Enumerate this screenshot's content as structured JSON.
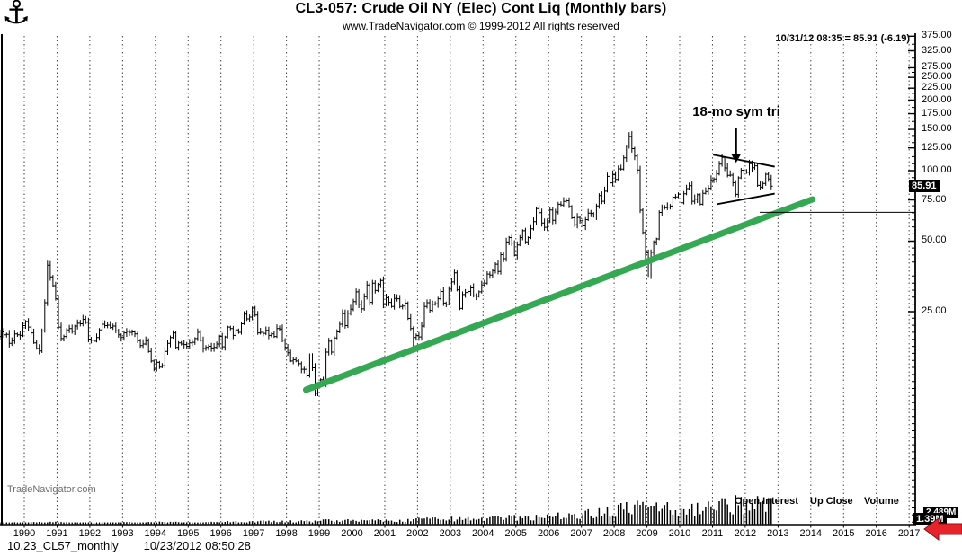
{
  "header": {
    "title": "CL3-057:  Crude Oil NY (Elec) Cont Liq  (Monthly bars)",
    "subtitle": "www.TradeNavigator.com © 1999-2012 All rights reserved",
    "quote": "10/31/12 08:35 = 85.91 (-6.19)"
  },
  "watermark": "TradeNavigator.com",
  "legend": {
    "open_interest": "Open Interest",
    "up_close": "Up Close",
    "volume": "Volume"
  },
  "footer": {
    "file": "10.23_CL57_monthly",
    "timestamp": "10/23/2012 08:50:28"
  },
  "badges": {
    "last_price": "85.91",
    "volume_front": "1.39M",
    "volume_back": "2.489M"
  },
  "annotation": {
    "label": "18-mo sym tri"
  },
  "chart_data": {
    "type": "bar",
    "subtype": "monthly-ohlc-bars",
    "title": "CL3-057: Crude Oil NY (Elec) Cont Liq (Monthly bars)",
    "last_quote": {
      "date": "10/31/12",
      "time": "08:35",
      "price": 85.91,
      "change": -6.19
    },
    "x_axis": {
      "start_year": 1989,
      "end_year": 2017,
      "tick_years": [
        1990,
        1991,
        1992,
        1993,
        1994,
        1995,
        1996,
        1997,
        1998,
        1999,
        2000,
        2001,
        2002,
        2003,
        2004,
        2005,
        2006,
        2007,
        2008,
        2009,
        2010,
        2011,
        2012,
        2013,
        2014,
        2015,
        2016,
        2017
      ]
    },
    "y_axis": {
      "scale": "log",
      "side": "right",
      "labels": [
        "375.00",
        "325.00",
        "275.00",
        "250.00",
        "225.00",
        "200.00",
        "175.00",
        "150.00",
        "125.00",
        "100.00",
        "75.00",
        "50.00",
        "25.00"
      ],
      "grid": "vertical-dashed-only"
    },
    "monthly_closes": {
      "1989": [
        17.0,
        17.9,
        19.6,
        20.5,
        19.9,
        20.0,
        18.3,
        18.8,
        20.1,
        19.9,
        19.8,
        21.8
      ],
      "1990": [
        22.7,
        21.5,
        20.3,
        18.4,
        17.4,
        17.0,
        20.7,
        27.3,
        39.5,
        35.2,
        32.3,
        28.4
      ],
      "1991": [
        21.5,
        19.2,
        19.6,
        20.9,
        21.2,
        20.6,
        21.7,
        22.3,
        22.2,
        23.2,
        22.5,
        19.1
      ],
      "1992": [
        18.9,
        18.7,
        19.4,
        20.9,
        22.1,
        21.8,
        21.9,
        21.4,
        21.7,
        20.7,
        19.9,
        19.4
      ],
      "1993": [
        20.3,
        20.6,
        20.4,
        20.5,
        20.1,
        18.8,
        17.9,
        18.2,
        18.8,
        16.9,
        15.4,
        14.2
      ],
      "1994": [
        15.2,
        14.5,
        14.7,
        16.9,
        18.3,
        19.4,
        20.3,
        17.6,
        18.4,
        18.2,
        18.1,
        17.8
      ],
      "1995": [
        18.4,
        18.5,
        19.2,
        20.4,
        18.9,
        17.4,
        17.6,
        17.8,
        17.5,
        17.6,
        18.2,
        19.6
      ],
      "1996": [
        17.7,
        19.5,
        21.5,
        21.2,
        19.8,
        20.9,
        20.4,
        22.2,
        24.4,
        23.3,
        23.7,
        25.9
      ],
      "1997": [
        24.2,
        20.3,
        20.4,
        20.2,
        20.8,
        19.8,
        20.1,
        19.6,
        21.2,
        21.1,
        18.9,
        17.6
      ],
      "1998": [
        16.7,
        15.4,
        15.6,
        15.4,
        15.0,
        14.2,
        14.2,
        13.3,
        16.0,
        14.4,
        11.2,
        12.0
      ],
      "1999": [
        12.8,
        12.3,
        16.8,
        18.7,
        16.8,
        19.3,
        20.5,
        22.1,
        24.5,
        21.8,
        24.6,
        25.6
      ],
      "2000": [
        27.6,
        30.4,
        26.9,
        25.7,
        29.0,
        32.5,
        27.4,
        33.1,
        30.8,
        32.7,
        34.0,
        26.8
      ],
      "2001": [
        28.7,
        27.4,
        26.3,
        28.5,
        28.4,
        26.3,
        26.4,
        27.2,
        23.4,
        21.2,
        19.4,
        19.8
      ],
      "2002": [
        19.5,
        21.7,
        26.3,
        27.3,
        25.3,
        26.9,
        27.0,
        28.4,
        30.5,
        27.2,
        26.9,
        31.2
      ],
      "2003": [
        33.5,
        36.6,
        31.0,
        25.8,
        29.6,
        30.2,
        30.5,
        31.6,
        29.2,
        29.1,
        30.4,
        32.5
      ],
      "2004": [
        33.1,
        36.2,
        35.8,
        37.4,
        39.9,
        37.1,
        43.8,
        42.1,
        49.6,
        51.8,
        49.1,
        43.5
      ],
      "2005": [
        48.2,
        51.8,
        55.4,
        49.7,
        51.8,
        56.5,
        60.6,
        68.9,
        66.2,
        59.8,
        57.3,
        61.0
      ],
      "2006": [
        67.9,
        61.4,
        66.6,
        71.9,
        71.3,
        73.9,
        74.4,
        70.3,
        62.9,
        58.7,
        63.1,
        61.1
      ],
      "2007": [
        58.1,
        61.8,
        65.9,
        65.7,
        64.0,
        70.7,
        78.2,
        74.0,
        81.7,
        94.5,
        88.7,
        96.0
      ],
      "2008": [
        91.8,
        101.8,
        101.6,
        113.5,
        127.4,
        140.0,
        124.1,
        115.5,
        100.6,
        67.8,
        54.4,
        44.6
      ],
      "2009": [
        41.7,
        44.8,
        49.7,
        51.1,
        66.3,
        69.9,
        69.5,
        69.9,
        70.6,
        77.0,
        77.3,
        79.4
      ],
      "2010": [
        72.9,
        79.7,
        83.8,
        86.2,
        74.0,
        75.6,
        78.9,
        71.9,
        80.0,
        81.4,
        84.1,
        91.4
      ],
      "2011": [
        92.2,
        96.9,
        106.7,
        113.9,
        102.7,
        95.4,
        95.7,
        88.8,
        79.2,
        93.2,
        100.4,
        98.8
      ],
      "2012": [
        98.5,
        107.1,
        103.0,
        104.9,
        86.5,
        85.0,
        88.1,
        96.5,
        92.2,
        85.91
      ]
    },
    "high_overrides": {
      "1990-10": 41.1,
      "2008-07": 147.3,
      "2011-05": 114.8,
      "2012-03": 110.5
    },
    "low_overrides": {
      "1998-12": 10.9,
      "2001-11": 16.9,
      "2008-12": 40.0,
      "2009-01": 35.2,
      "2009-02": 34.5
    },
    "volume_rel_by_year": {
      "1989": 0.05,
      "1990": 0.07,
      "1991": 0.06,
      "1992": 0.05,
      "1993": 0.06,
      "1994": 0.07,
      "1995": 0.07,
      "1996": 0.09,
      "1997": 0.11,
      "1998": 0.13,
      "1999": 0.15,
      "2000": 0.16,
      "2001": 0.19,
      "2002": 0.21,
      "2003": 0.25,
      "2004": 0.29,
      "2005": 0.33,
      "2006": 0.4,
      "2007": 0.58,
      "2008": 0.78,
      "2009": 0.72,
      "2010": 0.85,
      "2011": 1.0,
      "2012": 0.95
    },
    "annotations": {
      "sym_triangle": {
        "label": "18-mo sym tri",
        "upper_line": {
          "from": {
            "year": 2011.02,
            "price": 117.0
          },
          "to": {
            "year": 2012.9,
            "price": 104.0
          }
        },
        "lower_line": {
          "from": {
            "year": 2011.13,
            "price": 71.9
          },
          "to": {
            "year": 2012.9,
            "price": 79.8
          }
        },
        "arrow": {
          "year": 2011.72,
          "price_from": 152.0,
          "price_to": 108.0
        }
      },
      "green_trendline": {
        "from": {
          "year": 1998.6,
          "price": 11.6
        },
        "to": {
          "year": 2014.05,
          "price": 75.4
        },
        "color": "#35A853"
      },
      "support_line": {
        "price": 66.4,
        "from_year": 2012.44,
        "to_year": 2017.19
      }
    }
  }
}
